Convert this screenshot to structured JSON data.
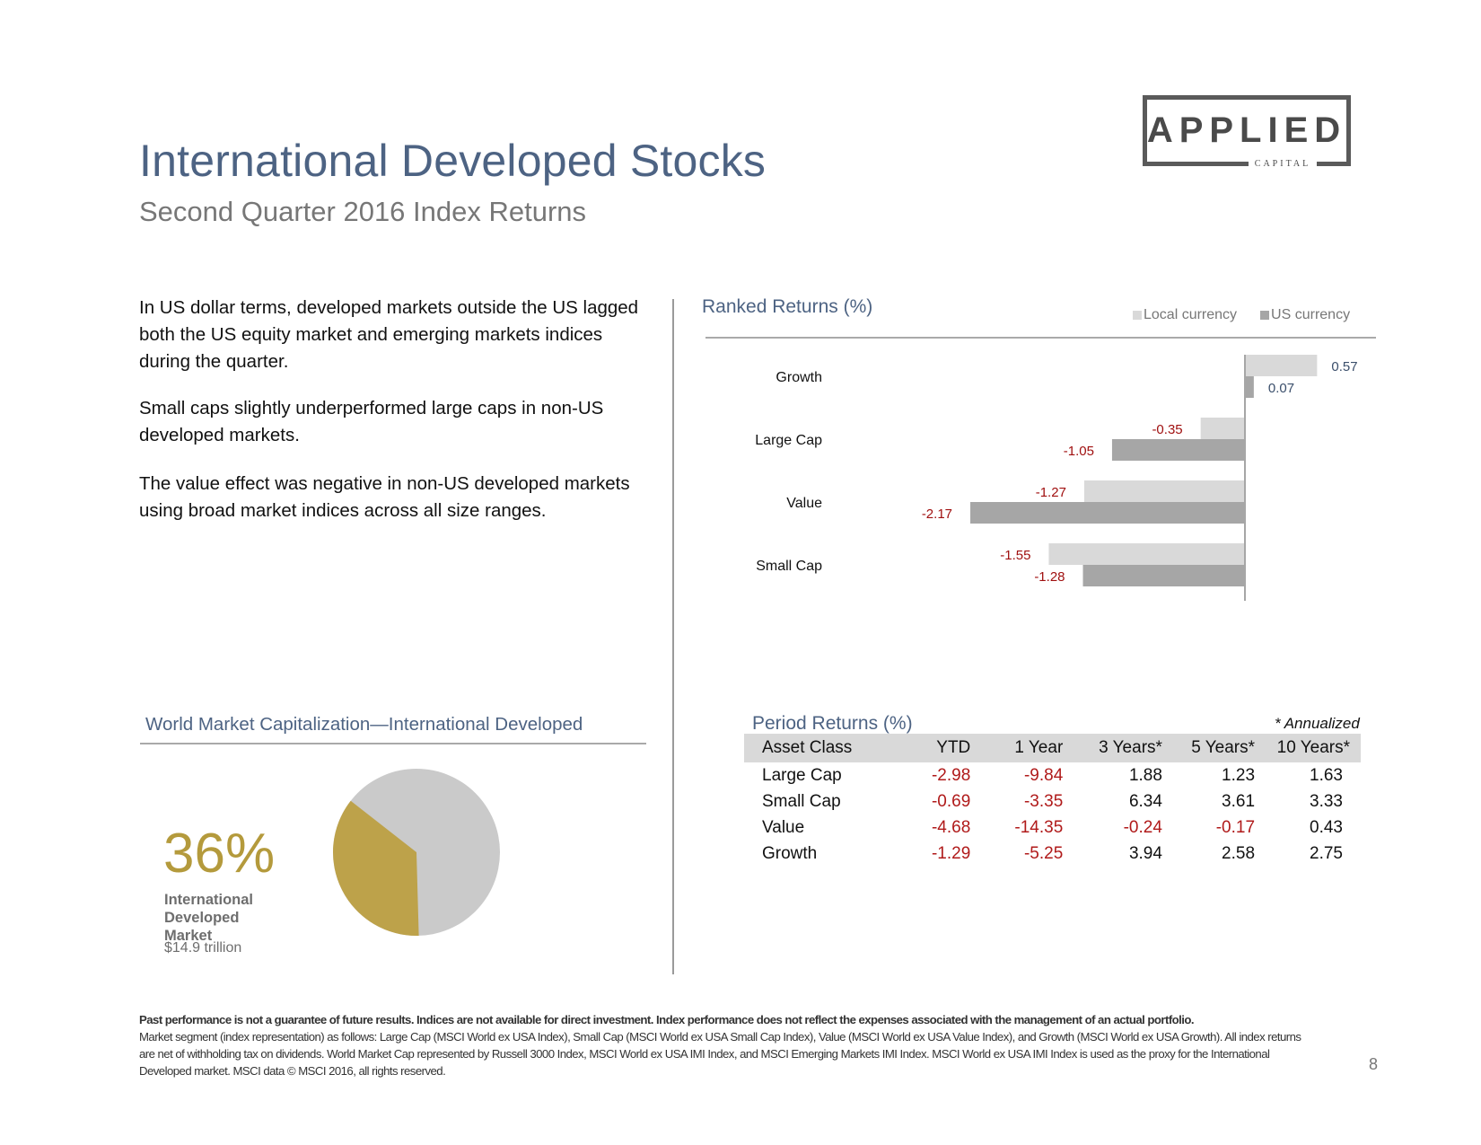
{
  "header": {
    "title": "International  Developed  Stocks",
    "subtitle": "Second Quarter 2016 Index Returns"
  },
  "logo": {
    "wordmark": "APPLIED",
    "tagline": "CAPITAL"
  },
  "intro": {
    "paragraphs": [
      "In US dollar terms, developed markets outside the US lagged both the US equity market and emerging markets indices during the quarter.",
      "Small caps slightly underperformed large caps in non-US developed markets.",
      "The value effect was negative in non-US developed markets using broad market indices across all size ranges."
    ]
  },
  "ranked_returns": {
    "heading": "Ranked Returns (%)",
    "legend": {
      "local": "Local  currency",
      "us": "US currency"
    }
  },
  "chart_data": {
    "type": "bar",
    "orientation": "horizontal",
    "title": "Ranked Returns (%)",
    "categories": [
      "Growth",
      "Large  Cap",
      "Value",
      "Small  Cap"
    ],
    "series": [
      {
        "name": "Local  currency",
        "values": [
          0.57,
          -0.35,
          -1.27,
          -1.55
        ],
        "color": "#d9d9d9"
      },
      {
        "name": "US currency",
        "values": [
          0.07,
          -1.05,
          -2.17,
          -1.28
        ],
        "color": "#a6a6a6"
      }
    ],
    "value_labels": {
      "local": [
        "0.57",
        "-0.35",
        "-1.27",
        "-1.55"
      ],
      "us": [
        "0.07",
        "-1.05",
        "-2.17",
        "-1.28"
      ]
    },
    "legend_position": "top-right",
    "label_colors": {
      "positive": "#3b4f6b",
      "negative": "#a01010"
    }
  },
  "period_returns": {
    "heading": "Period Returns (%)",
    "note": "* Annualized",
    "columns": [
      "Asset Class",
      "YTD",
      "1 Year",
      "3 Years*",
      "5 Years*",
      "10 Years*"
    ],
    "rows": [
      [
        "Large Cap",
        "-2.98",
        "-9.84",
        "1.88",
        "1.23",
        "1.63"
      ],
      [
        "Small Cap",
        "-0.69",
        "-3.35",
        "6.34",
        "3.61",
        "3.33"
      ],
      [
        "Value",
        "-4.68",
        "-14.35",
        "-0.24",
        "-0.17",
        "0.43"
      ],
      [
        "Growth",
        "-1.29",
        "-5.25",
        "3.94",
        "2.58",
        "2.75"
      ]
    ]
  },
  "market_cap": {
    "heading": "World  Market  Capitalization—International Developed",
    "percent_label": "36%",
    "share": 0.36,
    "label_lines": [
      "International",
      "Developed",
      "Market"
    ],
    "value": "$14.9   trillion",
    "colors": {
      "share": "#bda24a",
      "rest": "#cacaca"
    }
  },
  "footer": {
    "bold": "Past performance is not a guarantee of future results. Indices are not available for direct investment. Index performance does not reflect the expenses associated with the management of an actual portfolio.",
    "text": "Market segment (index representation) as follows: Large Cap (MSCI World ex USA Index), Small Cap (MSCI World ex USA Small Cap Index), Value (MSCI World ex USA Value Index), and Growth (MSCI World ex USA Growth). All index returns are net of withholding tax on dividends. World Market Cap represented by Russell 3000 Index, MSCI World ex USA IMI Index, and MSCI Emerging Markets IMI Index. MSCI World ex USA IMI Index is used as the proxy for the International Developed market. MSCI data © MSCI 2016, all rights reserved.",
    "page_number": "8"
  }
}
